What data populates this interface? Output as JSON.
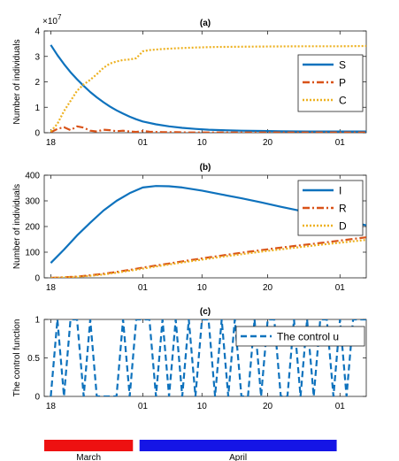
{
  "chart_data": [
    {
      "type": "line",
      "panel_label": "(a)",
      "ylabel": "Number of individuals",
      "exponent_label": "×10",
      "exponent_power": "7",
      "ylim": [
        0,
        4
      ],
      "yticks": [
        0,
        1,
        2,
        3,
        4
      ],
      "xlim": [
        0,
        49
      ],
      "xticks": [
        {
          "x": 1,
          "label": "18"
        },
        {
          "x": 15,
          "label": "01"
        },
        {
          "x": 24,
          "label": "10"
        },
        {
          "x": 34,
          "label": "20"
        },
        {
          "x": 45,
          "label": "01"
        }
      ],
      "legend": "top-right",
      "series": [
        {
          "name": "S",
          "color": "#0e72bd",
          "dash": "solid",
          "x": [
            1,
            2,
            3,
            4,
            5,
            6,
            7,
            8,
            9,
            10,
            11,
            12,
            13,
            14,
            15,
            17,
            19,
            21,
            23,
            25,
            27,
            30,
            33,
            36,
            40,
            44,
            48,
            49
          ],
          "y": [
            3.45,
            3.05,
            2.7,
            2.38,
            2.1,
            1.84,
            1.6,
            1.39,
            1.2,
            1.03,
            0.88,
            0.75,
            0.63,
            0.53,
            0.44,
            0.33,
            0.25,
            0.19,
            0.15,
            0.12,
            0.1,
            0.08,
            0.07,
            0.06,
            0.05,
            0.05,
            0.05,
            0.05
          ]
        },
        {
          "name": "P",
          "color": "#d95319",
          "dash": "dashdot",
          "x": [
            1,
            2,
            3,
            4,
            5,
            6,
            7,
            8,
            9,
            10,
            11,
            12,
            13,
            14,
            15,
            16,
            17,
            18,
            20,
            22,
            25,
            30,
            35,
            40,
            45,
            49
          ],
          "y": [
            0.02,
            0.15,
            0.22,
            0.1,
            0.25,
            0.2,
            0.08,
            0.05,
            0.12,
            0.1,
            0.06,
            0.08,
            0.05,
            0.03,
            0.07,
            0.04,
            0.03,
            0.02,
            0.02,
            0.01,
            0.01,
            0.01,
            0.01,
            0.01,
            0.01,
            0.01
          ]
        },
        {
          "name": "C",
          "color": "#edb120",
          "dash": "dotted",
          "x": [
            1,
            2,
            3,
            4,
            5,
            6,
            7,
            8,
            9,
            10,
            11,
            12,
            13,
            14,
            15,
            16,
            18,
            20,
            23,
            26,
            30,
            35,
            40,
            45,
            49
          ],
          "y": [
            0.05,
            0.35,
            0.85,
            1.25,
            1.65,
            1.9,
            2.08,
            2.3,
            2.55,
            2.72,
            2.8,
            2.86,
            2.88,
            2.93,
            3.2,
            3.25,
            3.29,
            3.32,
            3.35,
            3.37,
            3.38,
            3.39,
            3.4,
            3.4,
            3.41
          ]
        }
      ]
    },
    {
      "type": "line",
      "panel_label": "(b)",
      "ylabel": "Number of individuals",
      "ylim": [
        0,
        400
      ],
      "yticks": [
        0,
        100,
        200,
        300,
        400
      ],
      "xlim": [
        0,
        49
      ],
      "xticks": [
        {
          "x": 1,
          "label": "18"
        },
        {
          "x": 15,
          "label": "01"
        },
        {
          "x": 24,
          "label": "10"
        },
        {
          "x": 34,
          "label": "20"
        },
        {
          "x": 45,
          "label": "01"
        }
      ],
      "legend": "top-right",
      "series": [
        {
          "name": "I",
          "color": "#0e72bd",
          "dash": "solid",
          "x": [
            1,
            3,
            5,
            7,
            9,
            11,
            13,
            15,
            17,
            19,
            21,
            24,
            27,
            30,
            33,
            36,
            39,
            42,
            45,
            49
          ],
          "y": [
            58,
            110,
            165,
            215,
            262,
            300,
            330,
            352,
            358,
            357,
            352,
            340,
            325,
            310,
            294,
            277,
            261,
            244,
            228,
            205
          ]
        },
        {
          "name": "R",
          "color": "#d95319",
          "dash": "dashdot",
          "x": [
            1,
            3,
            5,
            7,
            9,
            11,
            13,
            15,
            17,
            19,
            21,
            24,
            27,
            30,
            33,
            36,
            39,
            42,
            45,
            49
          ],
          "y": [
            0,
            2,
            5,
            10,
            16,
            23,
            31,
            40,
            48,
            56,
            64,
            76,
            87,
            98,
            108,
            118,
            127,
            136,
            145,
            158
          ]
        },
        {
          "name": "D",
          "color": "#edb120",
          "dash": "dotted",
          "x": [
            1,
            3,
            5,
            7,
            9,
            11,
            13,
            15,
            17,
            19,
            21,
            24,
            27,
            30,
            33,
            36,
            39,
            42,
            45,
            49
          ],
          "y": [
            0,
            2,
            4,
            8,
            13,
            20,
            28,
            36,
            44,
            52,
            60,
            71,
            82,
            92,
            102,
            111,
            120,
            129,
            137,
            148
          ]
        }
      ]
    },
    {
      "type": "line",
      "panel_label": "(c)",
      "ylabel": "The control function",
      "ylim": [
        0,
        1
      ],
      "yticks": [
        0,
        0.5,
        1
      ],
      "xlim": [
        0,
        49
      ],
      "xticks": [
        {
          "x": 1,
          "label": "18"
        },
        {
          "x": 15,
          "label": "01"
        },
        {
          "x": 24,
          "label": "10"
        },
        {
          "x": 34,
          "label": "20"
        },
        {
          "x": 45,
          "label": "01"
        }
      ],
      "legend": "top-right",
      "series": [
        {
          "name": "The control u",
          "color": "#0e72bd",
          "dash": "dashed",
          "x": [
            1,
            2,
            3,
            4,
            5,
            6,
            7,
            8,
            9,
            10,
            11,
            12,
            13,
            14,
            15,
            16,
            17,
            18,
            19,
            20,
            21,
            22,
            23,
            24,
            25,
            26,
            27,
            28,
            29,
            30,
            31,
            32,
            33,
            34,
            35,
            36,
            37,
            38,
            39,
            40,
            41,
            42,
            43,
            44,
            45,
            46,
            47,
            48,
            49
          ],
          "y": [
            0,
            1,
            0,
            1,
            1,
            0,
            1,
            0,
            0,
            0,
            0,
            1,
            0,
            1,
            1,
            1,
            0,
            1,
            0,
            1,
            0,
            1,
            0,
            1,
            1,
            0,
            1,
            0,
            1,
            0,
            0,
            1,
            0,
            1,
            1,
            0,
            0,
            1,
            0,
            1,
            0,
            1,
            1,
            0,
            1,
            0,
            1,
            1,
            1
          ]
        }
      ]
    }
  ],
  "timeline": {
    "xlim": [
      0,
      49
    ],
    "bars": [
      {
        "label": "March",
        "color": "#ee1111",
        "x_start": 0,
        "x_end": 13.5
      },
      {
        "label": "April",
        "color": "#1515e6",
        "x_start": 14.5,
        "x_end": 44.5
      }
    ]
  }
}
